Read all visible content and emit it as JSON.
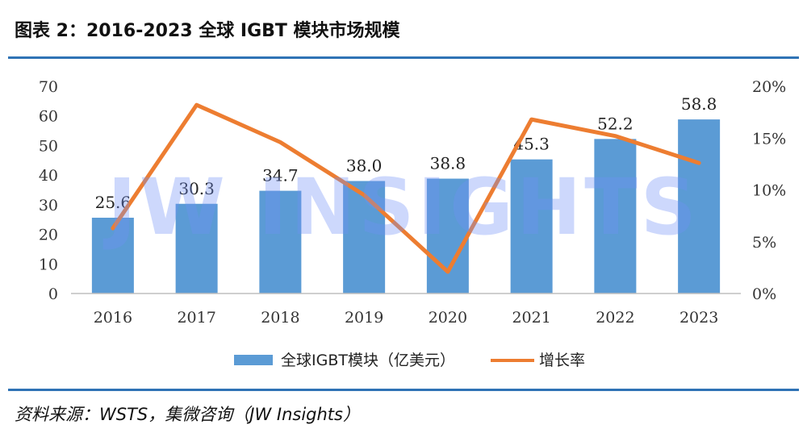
{
  "header": {
    "title": "图表 2：2016-2023 全球 IGBT 模块市场规模"
  },
  "source": "资料来源：WSTS，集微咨询（JW Insights）",
  "watermark": "JW INSIGHTS",
  "colors": {
    "bar": "#5b9bd5",
    "line": "#ed7d31",
    "rule": "#2f73b5"
  },
  "chart_data": {
    "type": "bar",
    "categories": [
      "2016",
      "2017",
      "2018",
      "2019",
      "2020",
      "2021",
      "2022",
      "2023"
    ],
    "series": [
      {
        "name": "全球IGBT模块（亿美元）",
        "type": "bar",
        "axis": "left",
        "values": [
          25.6,
          30.3,
          34.7,
          38.0,
          38.8,
          45.3,
          52.2,
          58.8
        ],
        "labels": [
          "25.6",
          "30.3",
          "34.7",
          "38.0",
          "38.8",
          "45.3",
          "52.2",
          "58.8"
        ]
      },
      {
        "name": "增长率",
        "type": "line",
        "axis": "right",
        "values": [
          6.3,
          18.2,
          14.6,
          9.5,
          2.1,
          16.8,
          15.2,
          12.6
        ]
      }
    ],
    "y_left": {
      "min": 0,
      "max": 70,
      "ticks": [
        "0",
        "10",
        "20",
        "30",
        "40",
        "50",
        "60",
        "70"
      ]
    },
    "y_right": {
      "min": 0,
      "max": 20,
      "ticks": [
        "0%",
        "5%",
        "10%",
        "15%",
        "20%"
      ]
    },
    "grid": false,
    "legend_position": "bottom"
  }
}
